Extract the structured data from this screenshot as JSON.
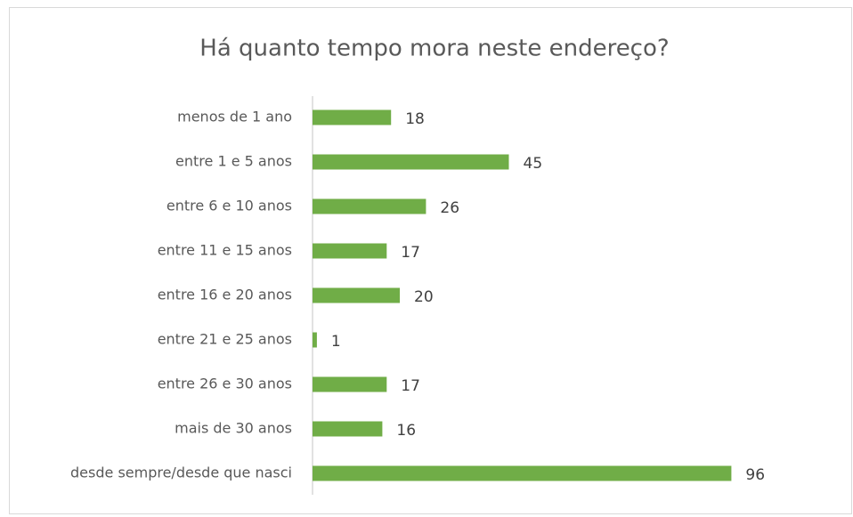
{
  "chart_data": {
    "type": "hbar",
    "title": "Há quanto tempo mora neste endereço?",
    "categories": [
      "menos de 1 ano",
      "entre 1 e 5 anos",
      "entre 6 e 10 anos",
      "entre 11 e 15 anos",
      "entre 16 e 20 anos",
      "entre 21 e 25 anos",
      "entre 26 e 30 anos",
      "mais de 30 anos",
      "desde sempre/desde que nasci"
    ],
    "values": [
      18,
      45,
      26,
      17,
      20,
      1,
      17,
      16,
      96
    ],
    "color": "#70ad47",
    "xlim": [
      0,
      120
    ]
  }
}
